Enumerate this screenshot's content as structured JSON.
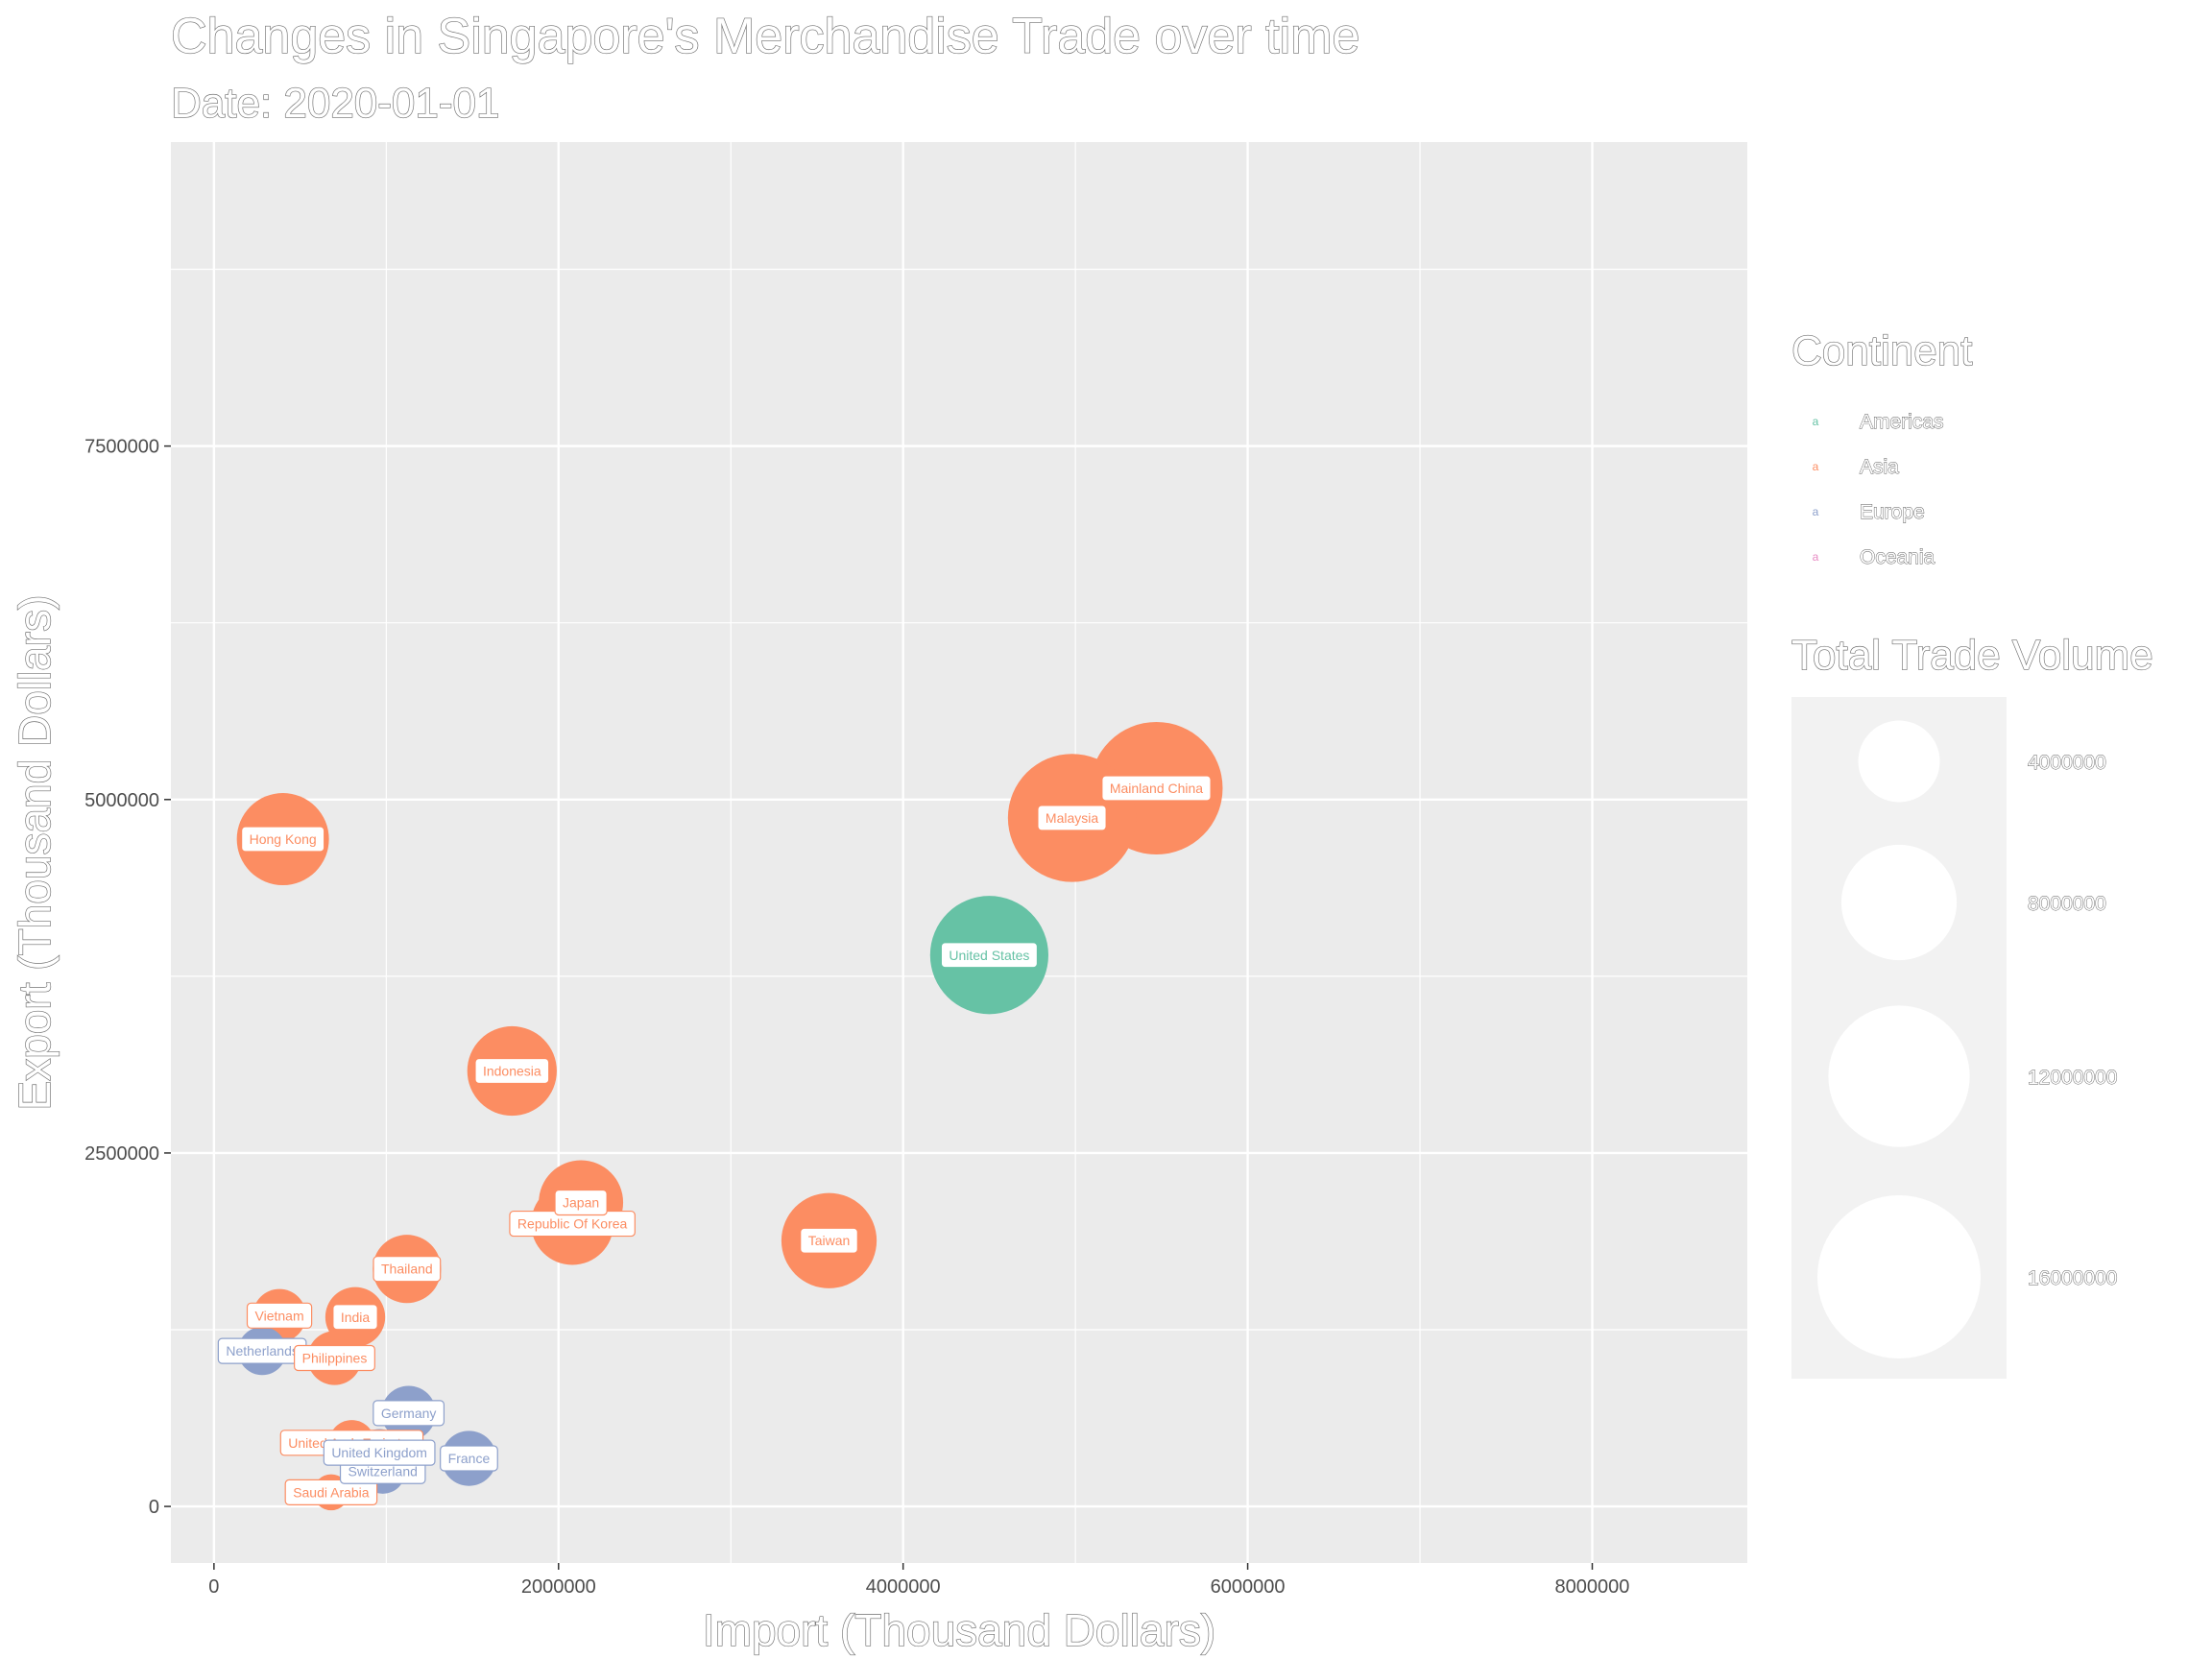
{
  "chart_data": {
    "type": "scatter",
    "title": "Changes in Singapore's Merchandise Trade over time",
    "subtitle": "Date: 2020-01-01",
    "xlabel": "Import (Thousand Dollars)",
    "ylabel": "Export (Thousand Dollars)",
    "xlim": [
      -250000,
      8900000
    ],
    "ylim": [
      -400000,
      9650000
    ],
    "x_ticks": [
      0,
      2000000,
      4000000,
      6000000,
      8000000
    ],
    "x_tick_labels": [
      "0",
      "2000000",
      "4000000",
      "6000000",
      "8000000"
    ],
    "y_ticks": [
      0,
      2500000,
      5000000,
      7500000
    ],
    "y_tick_labels": [
      "0",
      "2500000",
      "5000000",
      "7500000"
    ],
    "grid": true,
    "legend_position": "right",
    "continent_legend": {
      "title": "Continent",
      "items": [
        {
          "name": "Americas",
          "color": "#66c2a5"
        },
        {
          "name": "Asia",
          "color": "#fc8d62"
        },
        {
          "name": "Europe",
          "color": "#8da0cb"
        },
        {
          "name": "Oceania",
          "color": "#e78ac3"
        }
      ]
    },
    "size_legend": {
      "title": "Total Trade Volume",
      "breaks": [
        4000000,
        8000000,
        12000000,
        16000000
      ],
      "labels": [
        "4000000",
        "8000000",
        "12000000",
        "16000000"
      ]
    },
    "points": [
      {
        "label": "Netherlands",
        "continent": "Europe",
        "x": 280000,
        "y": 1100000,
        "size": 1400000
      },
      {
        "label": "Vietnam",
        "continent": "Asia",
        "x": 380000,
        "y": 1350000,
        "size": 1700000
      },
      {
        "label": "Hong Kong",
        "continent": "Asia",
        "x": 400000,
        "y": 4720000,
        "size": 5100000
      },
      {
        "label": "Philippines",
        "continent": "Asia",
        "x": 700000,
        "y": 1050000,
        "size": 1750000
      },
      {
        "label": "India",
        "continent": "Asia",
        "x": 820000,
        "y": 1340000,
        "size": 2150000
      },
      {
        "label": "Saudi Arabia",
        "continent": "Asia",
        "x": 680000,
        "y": 100000,
        "size": 780000
      },
      {
        "label": "United Arab Emirates",
        "continent": "Asia",
        "x": 800000,
        "y": 450000,
        "size": 1250000
      },
      {
        "label": "Switzerland",
        "continent": "Europe",
        "x": 980000,
        "y": 250000,
        "size": 1230000
      },
      {
        "label": "United Kingdom",
        "continent": "Europe",
        "x": 960000,
        "y": 380000,
        "size": 1340000
      },
      {
        "label": "Germany",
        "continent": "Europe",
        "x": 1130000,
        "y": 660000,
        "size": 1790000
      },
      {
        "label": "France",
        "continent": "Europe",
        "x": 1480000,
        "y": 340000,
        "size": 1820000
      },
      {
        "label": "Thailand",
        "continent": "Asia",
        "x": 1120000,
        "y": 1680000,
        "size": 2800000
      },
      {
        "label": "Indonesia",
        "continent": "Asia",
        "x": 1730000,
        "y": 3080000,
        "size": 4810000
      },
      {
        "label": "Republic Of Korea",
        "continent": "Asia",
        "x": 2080000,
        "y": 2000000,
        "size": 4080000
      },
      {
        "label": "Japan",
        "continent": "Asia",
        "x": 2130000,
        "y": 2150000,
        "size": 4280000
      },
      {
        "label": "Taiwan",
        "continent": "Asia",
        "x": 3570000,
        "y": 1880000,
        "size": 5450000
      },
      {
        "label": "United States",
        "continent": "Americas",
        "x": 4500000,
        "y": 3900000,
        "size": 8400000
      },
      {
        "label": "Malaysia",
        "continent": "Asia",
        "x": 4980000,
        "y": 4870000,
        "size": 9850000
      },
      {
        "label": "Mainland China",
        "continent": "Asia",
        "x": 5470000,
        "y": 5080000,
        "size": 10550000
      }
    ]
  }
}
